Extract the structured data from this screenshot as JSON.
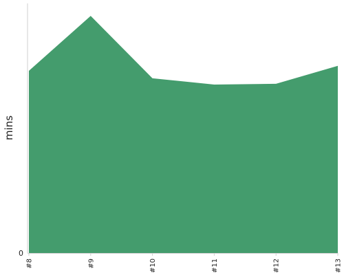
{
  "chart_data": {
    "type": "area",
    "x": [
      "#8",
      "#9",
      "#10",
      "#11",
      "#12",
      "#13"
    ],
    "series": [
      {
        "values": [
          73,
          95,
          70,
          67.5,
          67.8,
          75
        ]
      }
    ],
    "ylabel": "mins",
    "xlabel": "",
    "title": "",
    "y_ticks": [
      "0"
    ],
    "ylim": [
      0,
      100
    ],
    "grid": false,
    "legend": "none",
    "colors": {
      "fill": "#449c6d",
      "axis": "#cfcfcf",
      "text": "#222222"
    }
  }
}
